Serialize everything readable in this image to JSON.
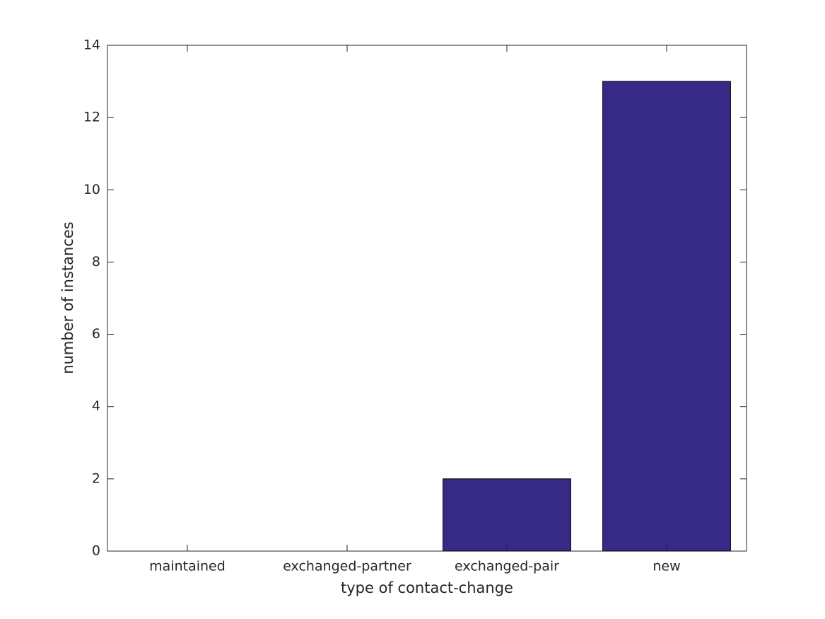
{
  "chart_data": {
    "type": "bar",
    "x_label": "type of contact-change",
    "y_label": "number of instances",
    "categories": [
      "maintained",
      "exchanged-partner",
      "exchanged-pair",
      "new"
    ],
    "values": [
      0,
      0,
      2,
      13
    ],
    "color": "#362a86",
    "ylim": [
      0,
      14
    ],
    "yticks": [
      0,
      2,
      4,
      6,
      8,
      10,
      12,
      14
    ],
    "grid": false
  }
}
